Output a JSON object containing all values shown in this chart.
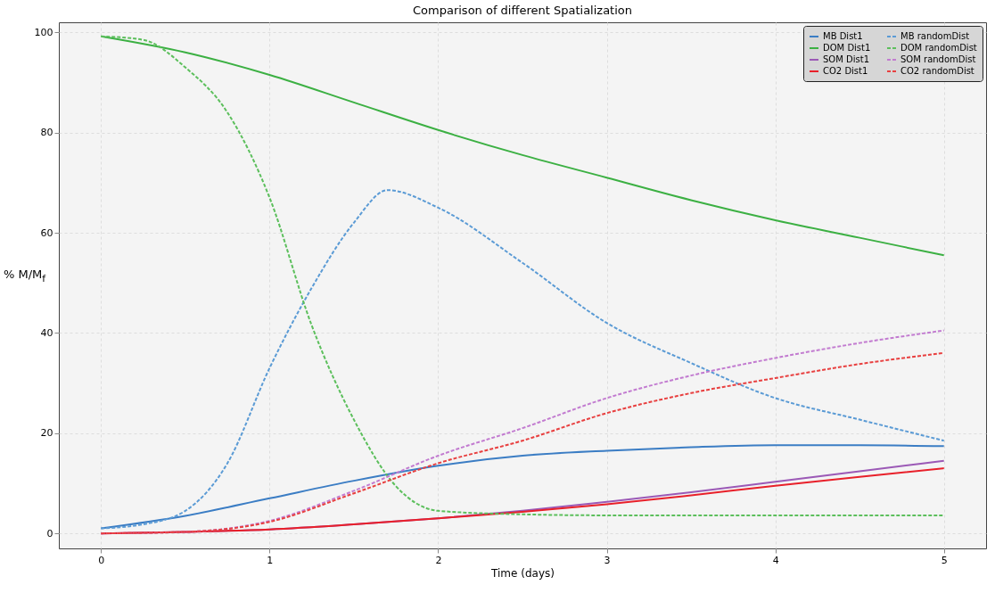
{
  "chart_data": {
    "type": "line",
    "title": "Comparison of different Spatialization",
    "xlabel": "Time (days)",
    "ylabel": "% M/M$_{f}$",
    "xlim": [
      -0.25,
      5.25
    ],
    "ylim": [
      -3,
      102
    ],
    "xticks": [
      0,
      1,
      2,
      3,
      4,
      5
    ],
    "yticks": [
      0,
      20,
      40,
      60,
      80,
      100
    ],
    "grid": true,
    "legend": "top right",
    "series": [
      {
        "name": "MB Dist1",
        "color": "#3b7dc4",
        "line_style": "solid",
        "x": [
          0,
          0.5,
          1,
          1.5,
          2,
          2.5,
          3,
          3.5,
          4,
          4.5,
          5
        ],
        "values": [
          1,
          3.5,
          7,
          10.5,
          13.5,
          15.5,
          16.5,
          17.2,
          17.6,
          17.6,
          17.4
        ]
      },
      {
        "name": "DOM Dist1",
        "color": "#3cb043",
        "line_style": "solid",
        "x": [
          0,
          0.5,
          1,
          1.5,
          2,
          2.5,
          3,
          3.5,
          4,
          4.5,
          5
        ],
        "values": [
          99.2,
          96,
          91.5,
          86,
          80.5,
          75.5,
          71,
          66.5,
          62.5,
          59,
          55.5
        ]
      },
      {
        "name": "SOM Dist1",
        "color": "#9b59b6",
        "line_style": "solid",
        "x": [
          0,
          0.5,
          1,
          1.5,
          2,
          2.5,
          3,
          3.5,
          4,
          4.5,
          5
        ],
        "values": [
          0,
          0.3,
          0.8,
          1.8,
          3,
          4.5,
          6.3,
          8.2,
          10.3,
          12.4,
          14.5
        ]
      },
      {
        "name": "CO2 Dist1",
        "color": "#e8202a",
        "line_style": "solid",
        "x": [
          0,
          0.5,
          1,
          1.5,
          2,
          2.5,
          3,
          3.5,
          4,
          4.5,
          5
        ],
        "values": [
          0,
          0.3,
          0.8,
          1.8,
          3,
          4.3,
          5.8,
          7.6,
          9.5,
          11.3,
          13
        ]
      },
      {
        "name": "MB randomDist",
        "color": "#5b9bd5",
        "line_style": "dashed",
        "x": [
          0,
          0.25,
          0.5,
          0.75,
          1,
          1.25,
          1.5,
          1.7,
          2,
          2.5,
          3,
          3.5,
          4,
          4.5,
          5
        ],
        "values": [
          1,
          1.8,
          4.5,
          14,
          33,
          49,
          62,
          68.5,
          65,
          54,
          42,
          34,
          27,
          22.7,
          18.5
        ]
      },
      {
        "name": "DOM randomDist",
        "color": "#5cbf5c",
        "line_style": "dashed",
        "x": [
          0,
          0.25,
          0.5,
          0.75,
          1,
          1.25,
          1.5,
          1.75,
          2,
          2.5,
          3,
          4,
          5
        ],
        "values": [
          99.2,
          98.5,
          93,
          84,
          67,
          41.5,
          22.7,
          9.4,
          4.5,
          3.8,
          3.6,
          3.6,
          3.6
        ]
      },
      {
        "name": "SOM randomDist",
        "color": "#c27bd0",
        "line_style": "dashed",
        "x": [
          0,
          0.5,
          1,
          1.5,
          2,
          2.5,
          3,
          3.5,
          4,
          4.5,
          5
        ],
        "values": [
          0,
          0.3,
          2.5,
          8.5,
          15.5,
          21,
          27,
          31.5,
          35,
          38,
          40.5
        ]
      },
      {
        "name": "CO2 randomDist",
        "color": "#e84040",
        "line_style": "dashed",
        "x": [
          0,
          0.5,
          1,
          1.5,
          2,
          2.5,
          3,
          3.5,
          4,
          4.5,
          5
        ],
        "values": [
          0,
          0.3,
          2.3,
          8,
          14,
          18.5,
          24,
          28,
          31,
          33.8,
          36
        ]
      }
    ]
  }
}
